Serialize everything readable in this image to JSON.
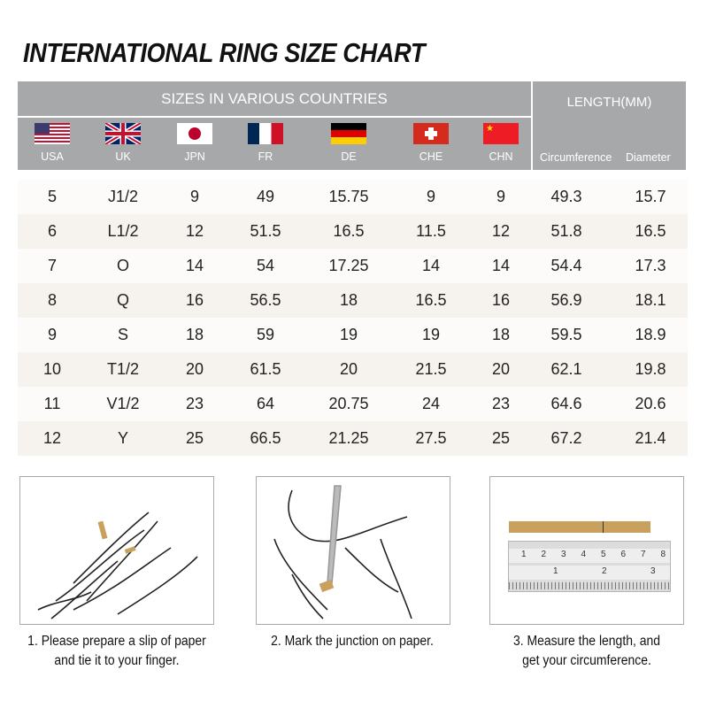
{
  "title": "INTERNATIONAL RING SIZE CHART",
  "header": {
    "sizes_label": "SIZES IN VARIOUS COUNTRIES",
    "length_label": "LENGTH(MM)",
    "countries": [
      {
        "code": "USA",
        "flag": "us-flag-icon"
      },
      {
        "code": "UK",
        "flag": "uk-flag-icon"
      },
      {
        "code": "JPN",
        "flag": "japan-flag-icon"
      },
      {
        "code": "FR",
        "flag": "france-flag-icon"
      },
      {
        "code": "DE",
        "flag": "germany-flag-icon"
      },
      {
        "code": "CHE",
        "flag": "switzerland-flag-icon"
      },
      {
        "code": "CHN",
        "flag": "china-flag-icon"
      }
    ],
    "length_columns": [
      "Circumference",
      "Diameter"
    ]
  },
  "rows": [
    [
      "5",
      "J1/2",
      "9",
      "49",
      "15.75",
      "9",
      "9",
      "49.3",
      "15.7"
    ],
    [
      "6",
      "L1/2",
      "12",
      "51.5",
      "16.5",
      "11.5",
      "12",
      "51.8",
      "16.5"
    ],
    [
      "7",
      "O",
      "14",
      "54",
      "17.25",
      "14",
      "14",
      "54.4",
      "17.3"
    ],
    [
      "8",
      "Q",
      "16",
      "56.5",
      "18",
      "16.5",
      "16",
      "56.9",
      "18.1"
    ],
    [
      "9",
      "S",
      "18",
      "59",
      "19",
      "19",
      "18",
      "59.5",
      "18.9"
    ],
    [
      "10",
      "T1/2",
      "20",
      "61.5",
      "20",
      "21.5",
      "20",
      "62.1",
      "19.8"
    ],
    [
      "11",
      "V1/2",
      "23",
      "64",
      "20.75",
      "24",
      "23",
      "64.6",
      "20.6"
    ],
    [
      "12",
      "Y",
      "25",
      "66.5",
      "21.25",
      "27.5",
      "25",
      "67.2",
      "21.4"
    ]
  ],
  "steps": [
    {
      "line1": "1. Please prepare a slip of paper",
      "line2": "and tie it to your finger.",
      "icon": "hand-with-paper-icon"
    },
    {
      "line1": "2. Mark the junction on paper.",
      "line2": "",
      "icon": "hand-marking-pen-icon"
    },
    {
      "line1": "3. Measure the length, and",
      "line2": "get your circumference.",
      "icon": "ruler-and-paper-strip-icon"
    }
  ],
  "ruler": {
    "top_numbers": [
      "1",
      "2",
      "3",
      "4",
      "5",
      "6",
      "7",
      "8"
    ],
    "bottom_numbers": [
      "1",
      "2",
      "3"
    ]
  },
  "colors": {
    "header_bg": "#a7a8aa",
    "row_alt": "#f6f2ee",
    "paper_strip": "#c9a15d"
  }
}
